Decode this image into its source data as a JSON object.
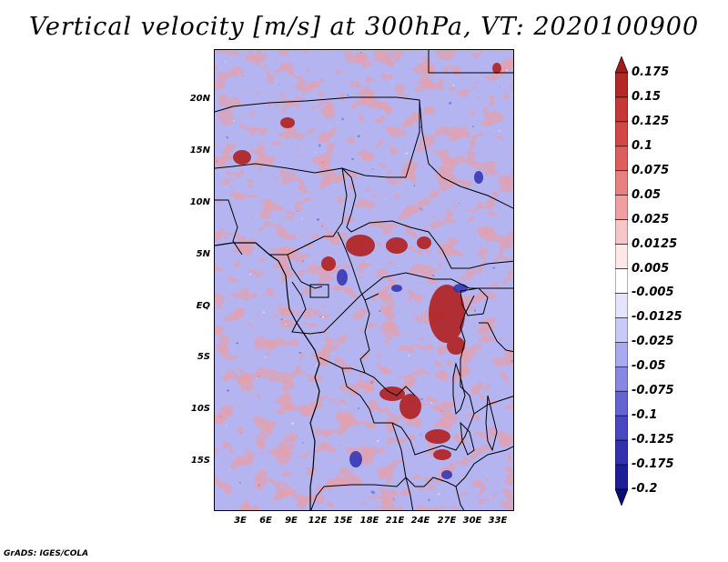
{
  "title": "Vertical velocity [m/s] at 300hPa, VT: 2020100900",
  "credit": "GrADS: IGES/COLA",
  "map": {
    "variable": "vertical velocity",
    "units": "m/s",
    "level": "300hPa",
    "valid_time": "2020100900",
    "lat_labels": [
      "20N",
      "15N",
      "10N",
      "5N",
      "EQ",
      "5S",
      "10S",
      "15S"
    ],
    "lon_labels": [
      "3E",
      "6E",
      "9E",
      "12E",
      "15E",
      "18E",
      "21E",
      "24E",
      "27E",
      "30E",
      "33E"
    ]
  },
  "colorbar": {
    "levels": [
      "0.175",
      "0.15",
      "0.125",
      "0.1",
      "0.075",
      "0.05",
      "0.025",
      "0.0125",
      "0.005",
      "-0.005",
      "-0.0125",
      "-0.025",
      "-0.05",
      "-0.075",
      "-0.1",
      "-0.125",
      "-0.175",
      "-0.2"
    ],
    "colors": [
      "#a01c1c",
      "#b42828",
      "#c43838",
      "#d24848",
      "#de5e5e",
      "#e88080",
      "#f0a0a0",
      "#f7c6c6",
      "#fce8e8",
      "#ffffff",
      "#e4e4fb",
      "#cacaf6",
      "#aaaaee",
      "#8888e2",
      "#6464d4",
      "#4848c4",
      "#3232b0",
      "#1e1e96",
      "#0c0c78"
    ]
  }
}
